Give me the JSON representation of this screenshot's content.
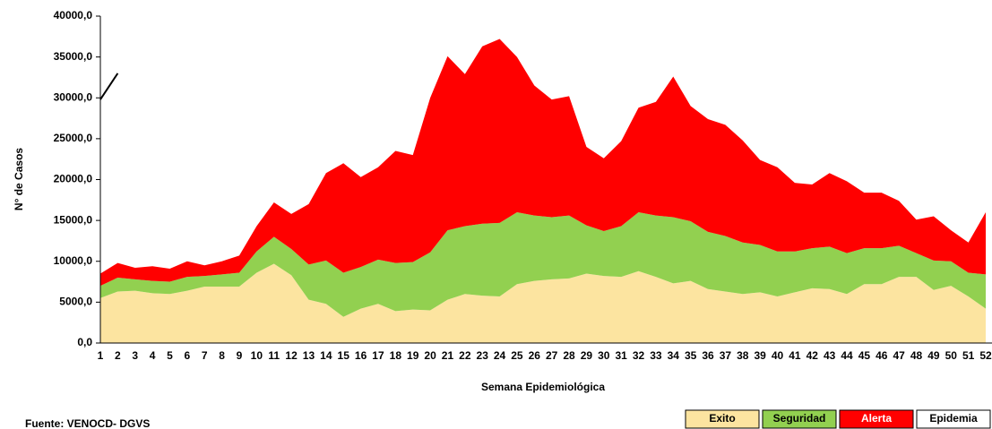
{
  "chart_data": {
    "type": "stacked_area",
    "y_label": "N° de Casos",
    "x_label": "Semana Epidemiológica",
    "source": "Fuente: VENOCD- DGVS",
    "categories": [
      1,
      2,
      3,
      4,
      5,
      6,
      7,
      8,
      9,
      10,
      11,
      12,
      13,
      14,
      15,
      16,
      17,
      18,
      19,
      20,
      21,
      22,
      23,
      24,
      25,
      26,
      27,
      28,
      29,
      30,
      31,
      32,
      33,
      34,
      35,
      36,
      37,
      38,
      39,
      40,
      41,
      42,
      43,
      44,
      45,
      46,
      47,
      48,
      49,
      50,
      51,
      52
    ],
    "ylim": [
      0,
      40000
    ],
    "yticks": [
      {
        "value": 0,
        "label": "0,0"
      },
      {
        "value": 5000,
        "label": "5000,0"
      },
      {
        "value": 10000,
        "label": "10000,0"
      },
      {
        "value": 15000,
        "label": "15000,0"
      },
      {
        "value": 20000,
        "label": "20000,0"
      },
      {
        "value": 25000,
        "label": "25000,0"
      },
      {
        "value": 30000,
        "label": "30000,0"
      },
      {
        "value": 35000,
        "label": "35000,0"
      },
      {
        "value": 40000,
        "label": "40000,0"
      }
    ],
    "series": [
      {
        "name": "Exito",
        "color": "#fce4a0",
        "values": [
          5500,
          6300,
          6400,
          6100,
          6000,
          6400,
          6900,
          6900,
          6900,
          8600,
          9700,
          8300,
          5300,
          4800,
          3200,
          4200,
          4800,
          3900,
          4100,
          4000,
          5300,
          6000,
          5800,
          5700,
          7200,
          7600,
          7800,
          7900,
          8500,
          8200,
          8100,
          8800,
          8100,
          7300,
          7600,
          6600,
          6300,
          6000,
          6200,
          5700,
          6200,
          6700,
          6600,
          6000,
          7200,
          7200,
          8100,
          8100,
          6500,
          7000,
          5700,
          4200
        ]
      },
      {
        "name": "Seguridad",
        "color": "#92d050",
        "values": [
          1500,
          1700,
          1400,
          1500,
          1500,
          1700,
          1300,
          1500,
          1700,
          2600,
          3300,
          3200,
          4300,
          5300,
          5400,
          5100,
          5400,
          5900,
          5800,
          7100,
          8500,
          8300,
          8800,
          9000,
          8800,
          8000,
          7600,
          7700,
          5900,
          5500,
          6200,
          7200,
          7500,
          8100,
          7300,
          7000,
          6800,
          6300,
          5800,
          5500,
          5000,
          4900,
          5200,
          5000,
          4400,
          4400,
          3800,
          2900,
          3600,
          3000,
          2900,
          4200
        ]
      },
      {
        "name": "Alerta",
        "color": "#ff0000",
        "values": [
          1500,
          1800,
          1400,
          1800,
          1600,
          1900,
          1300,
          1600,
          2100,
          3100,
          4200,
          4300,
          7400,
          10700,
          13400,
          11000,
          11300,
          13700,
          13100,
          18900,
          21300,
          18600,
          21700,
          22500,
          19000,
          15900,
          14400,
          14600,
          9600,
          8900,
          10400,
          12800,
          13900,
          17200,
          14100,
          13800,
          13600,
          12500,
          10400,
          10300,
          8400,
          7800,
          9000,
          8800,
          6800,
          6800,
          5500,
          4100,
          5400,
          3800,
          3700,
          7600
        ]
      }
    ],
    "legend_extra": {
      "name": "Epidemia",
      "color": "#ffffff"
    },
    "line": {
      "color": "#000000",
      "values": [
        29800,
        33000,
        null,
        null,
        null,
        null,
        null,
        null,
        null,
        null,
        null,
        null,
        null,
        null,
        null,
        null,
        null,
        null,
        null,
        null,
        null,
        null,
        null,
        null,
        null,
        null,
        null,
        null,
        null,
        null,
        null,
        null,
        null,
        null,
        null,
        null,
        null,
        null,
        null,
        null,
        null,
        null,
        null,
        null,
        null,
        null,
        null,
        null,
        null,
        null,
        null,
        null
      ]
    }
  }
}
